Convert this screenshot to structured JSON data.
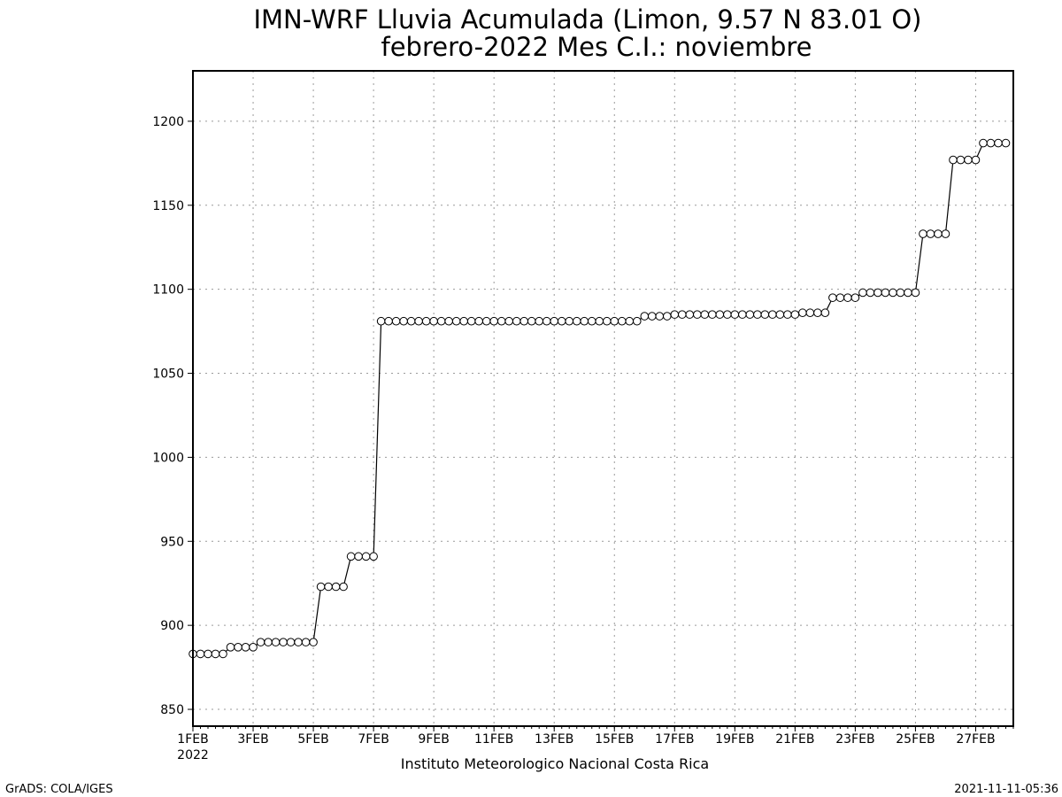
{
  "chart_data": {
    "type": "line",
    "title_line1": "IMN-WRF  Lluvia Acumulada  (Limon, 9.57  N 83.01  O)",
    "title_line2": "febrero-2022 Mes C.I.: noviembre",
    "xlabel": "",
    "ylabel": "",
    "x_range_days": [
      1,
      28.25
    ],
    "ylim": [
      840,
      1230
    ],
    "yticks": [
      850,
      900,
      950,
      1000,
      1050,
      1100,
      1150,
      1200
    ],
    "xticks": [
      {
        "day": 1,
        "label": "1FEB"
      },
      {
        "day": 3,
        "label": "3FEB"
      },
      {
        "day": 5,
        "label": "5FEB"
      },
      {
        "day": 7,
        "label": "7FEB"
      },
      {
        "day": 9,
        "label": "9FEB"
      },
      {
        "day": 11,
        "label": "11FEB"
      },
      {
        "day": 13,
        "label": "13FEB"
      },
      {
        "day": 15,
        "label": "15FEB"
      },
      {
        "day": 17,
        "label": "17FEB"
      },
      {
        "day": 19,
        "label": "19FEB"
      },
      {
        "day": 21,
        "label": "21FEB"
      },
      {
        "day": 23,
        "label": "23FEB"
      },
      {
        "day": 25,
        "label": "25FEB"
      },
      {
        "day": 27,
        "label": "27FEB"
      }
    ],
    "year_label": "2022",
    "grid": true,
    "marker": "open-circle",
    "line_color": "#000000",
    "step_hours": 6,
    "series": [
      {
        "values": [
          883,
          883,
          883,
          883,
          883,
          887,
          887,
          887,
          887,
          890,
          890,
          890,
          890,
          890,
          890,
          890,
          890,
          923,
          923,
          923,
          923,
          941,
          941,
          941,
          941,
          1081,
          1081,
          1081,
          1081,
          1081,
          1081,
          1081,
          1081,
          1081,
          1081,
          1081,
          1081,
          1081,
          1081,
          1081,
          1081,
          1081,
          1081,
          1081,
          1081,
          1081,
          1081,
          1081,
          1081,
          1081,
          1081,
          1081,
          1081,
          1081,
          1081,
          1081,
          1081,
          1081,
          1081,
          1081,
          1084,
          1084,
          1084,
          1084,
          1085,
          1085,
          1085,
          1085,
          1085,
          1085,
          1085,
          1085,
          1085,
          1085,
          1085,
          1085,
          1085,
          1085,
          1085,
          1085,
          1085,
          1086,
          1086,
          1086,
          1086,
          1095,
          1095,
          1095,
          1095,
          1098,
          1098,
          1098,
          1098,
          1098,
          1098,
          1098,
          1098,
          1133,
          1133,
          1133,
          1133,
          1177,
          1177,
          1177,
          1177,
          1187,
          1187,
          1187,
          1187
        ]
      }
    ]
  },
  "footer": {
    "center": "Instituto Meteorologico Nacional Costa Rica",
    "left": "GrADS: COLA/IGES",
    "right": "2021-11-11-05:36"
  }
}
